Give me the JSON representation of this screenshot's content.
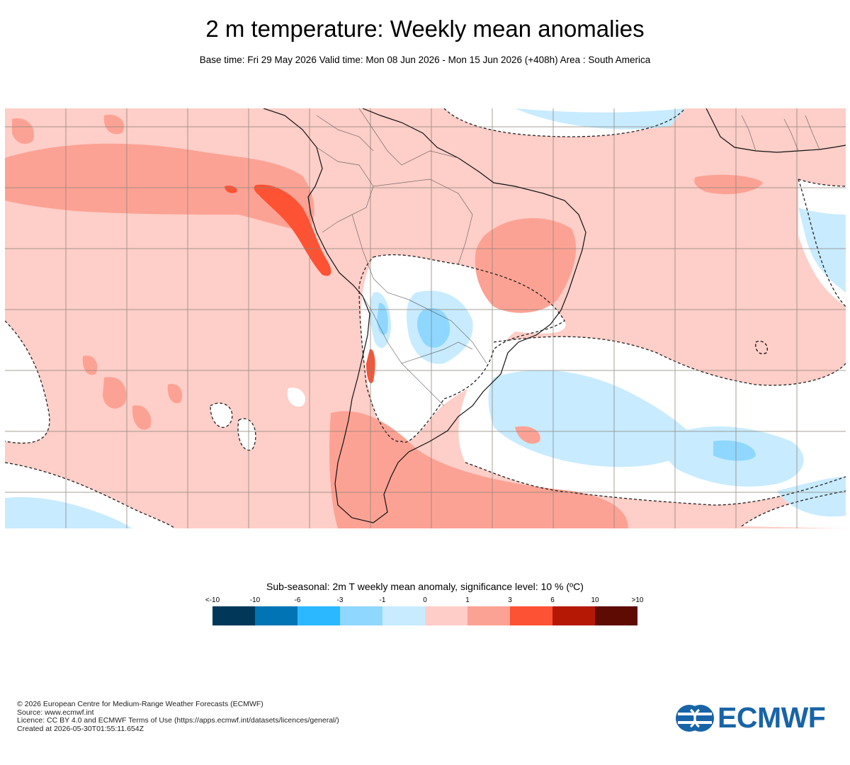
{
  "header": {
    "title": "2 m temperature: Weekly mean anomalies",
    "subtitle": "Base time: Fri 29 May 2026 Valid time: Mon 08 Jun 2026 - Mon 15 Jun 2026 (+408h) Area : South America"
  },
  "legend": {
    "title": "Sub-seasonal: 2m T weekly mean anomaly, significance level: 10 % (ºC)",
    "labels": [
      "<-10",
      "-10",
      "-6",
      "-3",
      "-1",
      "0",
      "1",
      "3",
      "6",
      "10",
      ">10"
    ],
    "colors": [
      "#01385a",
      "#0174b5",
      "#2bb8ff",
      "#8fd7ff",
      "#c8ebff",
      "#ffcdc8",
      "#fca294",
      "#fe5234",
      "#b51905",
      "#5e0b03"
    ]
  },
  "map_colors": {
    "ocean_land_default": "#fecec8",
    "positive_medium": "#fca294",
    "positive_strong": "#fe5234",
    "negative_light": "#c8ebff",
    "negative_medium": "#8fd7ff",
    "insignificant": "#ffffff",
    "gridline": "#8a8478",
    "coastline": "#111111"
  },
  "footer": {
    "lines": [
      "© 2026 European Centre for Medium-Range Weather Forecasts (ECMWF)",
      "Source: www.ecmwf.int",
      "Licence: CC BY 4.0 and ECMWF Terms of Use (https://apps.ecmwf.int/datasets/licences/general/)",
      "Created at 2026-05-30T01:55:11.654Z"
    ]
  },
  "logo": {
    "text": "ECMWF",
    "color": "#1864a7",
    "icon": "ecmwf-logo-icon"
  }
}
